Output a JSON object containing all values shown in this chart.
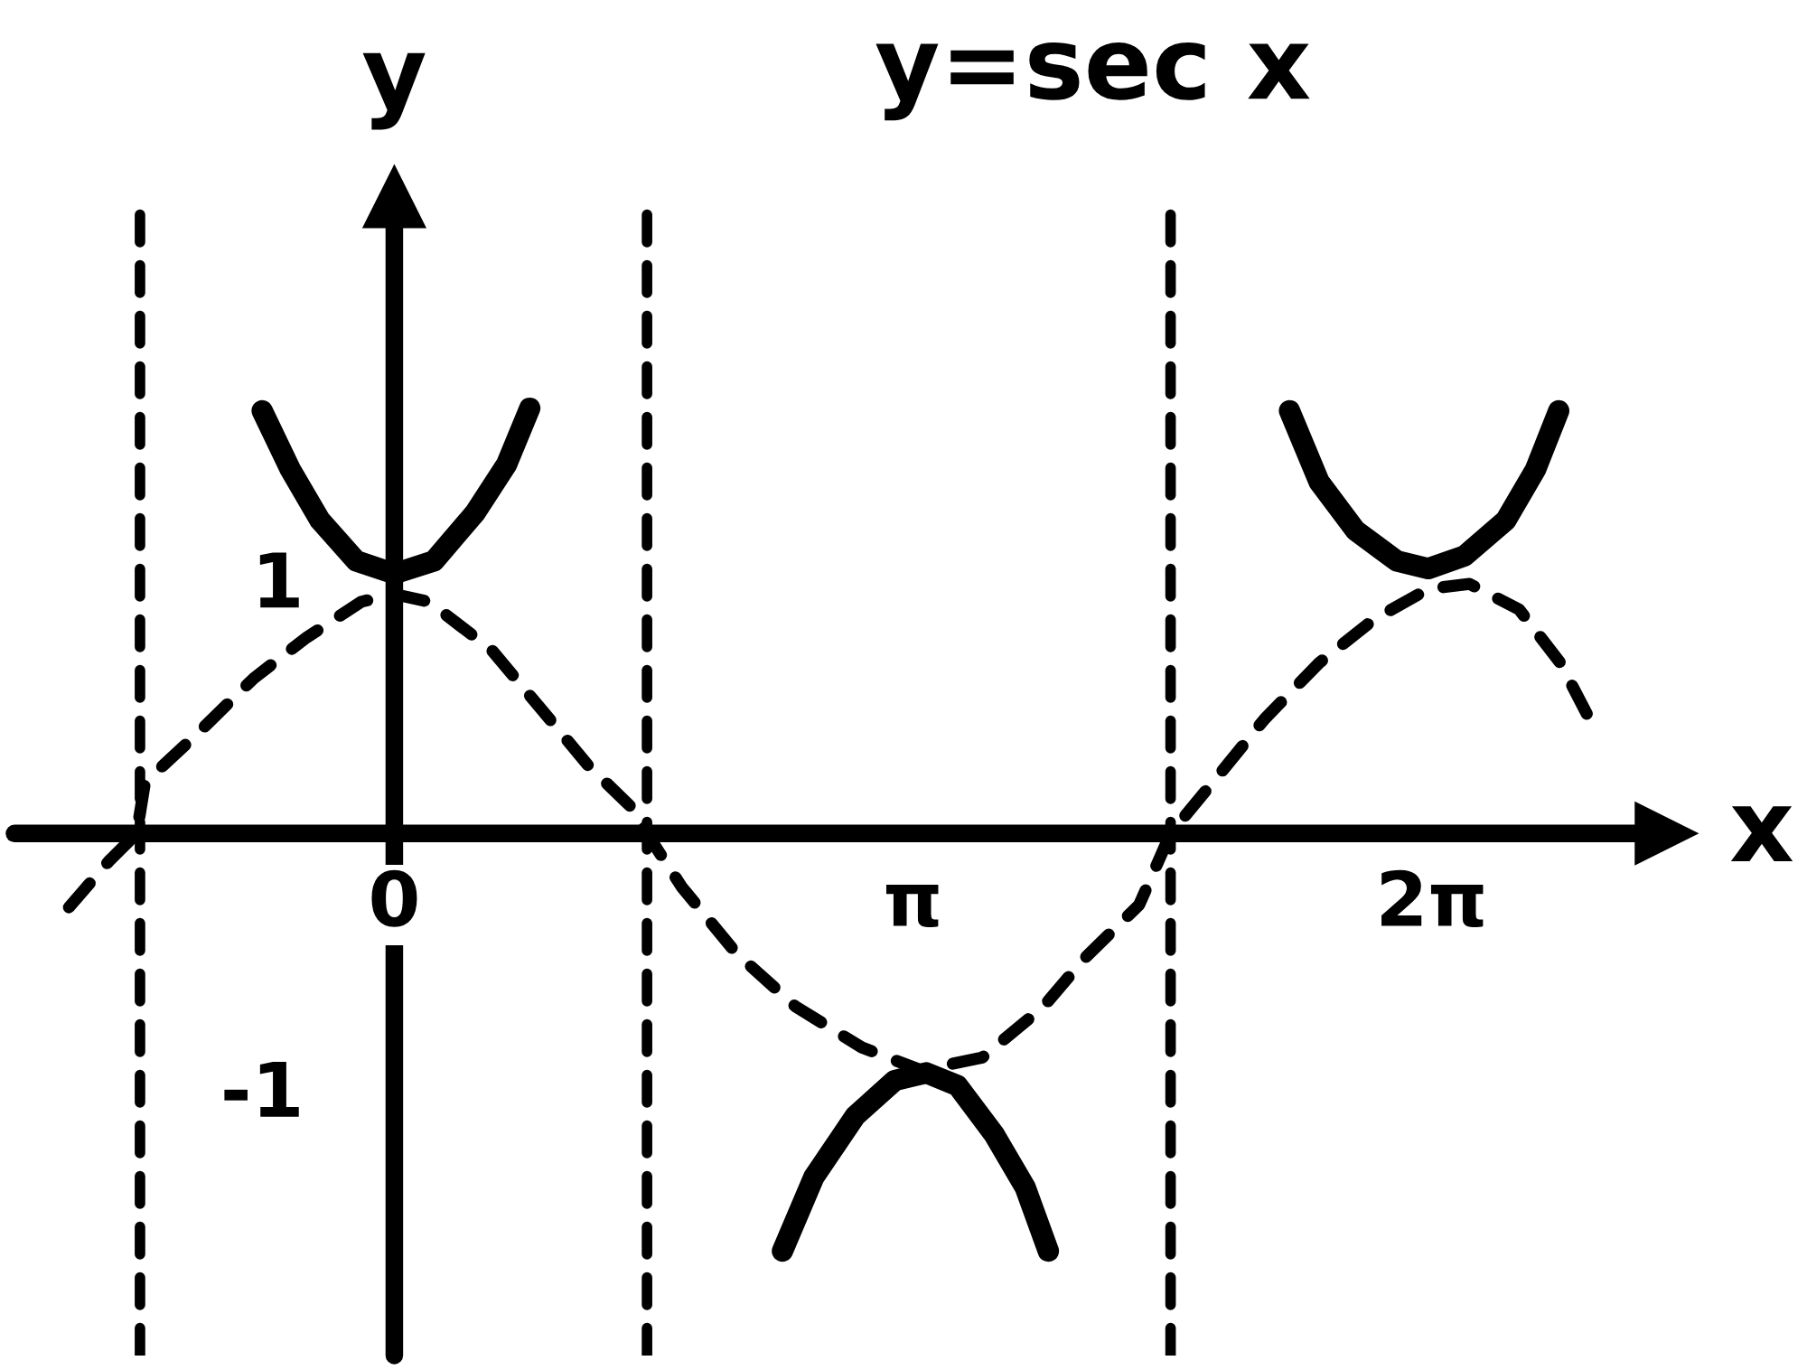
{
  "chart_data": {
    "type": "line",
    "title": "y=sec x",
    "xlabel": "x",
    "ylabel": "y",
    "xlim": [
      -2.3,
      7.7
    ],
    "ylim": [
      -2.05,
      2.5
    ],
    "xticks": [
      0,
      {
        "value": 3.14,
        "label": "π"
      },
      {
        "value": 6.28,
        "label": "2π"
      }
    ],
    "yticks": [
      -1,
      1
    ],
    "series": [
      {
        "color": "#000000",
        "line_style": "solid",
        "x": [
          -0.8,
          -0.63,
          -0.45,
          -0.23,
          0.0,
          0.24,
          0.49,
          0.68,
          0.82,
          1.53,
          2.35,
          2.54,
          2.79,
          3.03,
          3.22,
          3.41,
          3.63,
          3.82,
          3.96,
          4.7,
          5.42,
          5.6,
          5.82,
          6.07,
          6.26,
          6.48,
          6.73,
          6.91,
          7.05
        ],
        "values": [
          1.66,
          1.43,
          1.23,
          1.07,
          1.02,
          1.07,
          1.26,
          1.45,
          1.67,
          null,
          -1.64,
          -1.35,
          -1.11,
          -0.97,
          -0.94,
          -0.99,
          -1.18,
          -1.39,
          -1.64,
          null,
          1.66,
          1.38,
          1.19,
          1.07,
          1.04,
          1.09,
          1.23,
          1.43,
          1.66
        ]
      },
      {
        "color": "#000000",
        "line_style": "dashed",
        "x": [
          -1.97,
          -1.73,
          -1.56,
          -1.51,
          -1.18,
          -0.85,
          -0.53,
          -0.2,
          0.0,
          0.21,
          0.59,
          0.9,
          1.17,
          1.44,
          1.53,
          1.74,
          2.07,
          2.43,
          2.83,
          3.19,
          3.56,
          3.93,
          4.18,
          4.51,
          4.7,
          4.98,
          5.27,
          5.6,
          5.93,
          6.26,
          6.51,
          6.81,
          7.06,
          7.22
        ],
        "values": [
          -0.29,
          -0.11,
          0.0,
          0.2,
          0.4,
          0.61,
          0.77,
          0.91,
          0.94,
          0.91,
          0.72,
          0.48,
          0.27,
          0.1,
          0.0,
          -0.21,
          -0.47,
          -0.68,
          -0.84,
          -0.93,
          -0.88,
          -0.68,
          -0.49,
          -0.28,
          0.0,
          0.22,
          0.45,
          0.67,
          0.84,
          0.96,
          0.98,
          0.88,
          0.67,
          0.47
        ]
      }
    ],
    "ref_lines": [
      {
        "axis": "x",
        "value": -1.54,
        "color": "#000000",
        "line_style": "dashed"
      },
      {
        "axis": "x",
        "value": 1.53,
        "color": "#000000",
        "line_style": "dashed"
      },
      {
        "axis": "x",
        "value": 4.7,
        "color": "#000000",
        "line_style": "dashed"
      }
    ]
  }
}
